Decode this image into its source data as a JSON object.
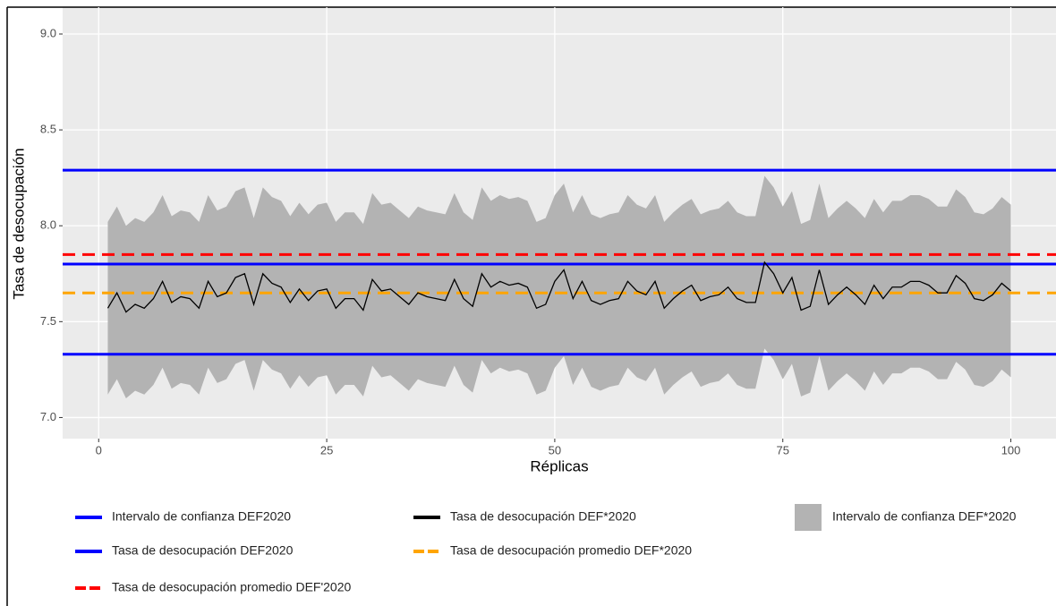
{
  "chart_data": {
    "type": "line",
    "x_label": "Réplicas",
    "y_label": "Tasa de desocupación",
    "xlim": [
      -3.95,
      104.95
    ],
    "ylim": [
      6.89,
      9.14
    ],
    "xticks": [
      0,
      25,
      50,
      75,
      100
    ],
    "yticks": [
      {
        "value": 7,
        "label": "7.0"
      },
      7.5,
      {
        "value": 8,
        "label": "8.0"
      },
      8.5,
      {
        "value": 9,
        "label": "9.0"
      }
    ],
    "grid": true,
    "x": [
      1,
      2,
      3,
      4,
      5,
      6,
      7,
      8,
      9,
      10,
      11,
      12,
      13,
      14,
      15,
      16,
      17,
      18,
      19,
      20,
      21,
      22,
      23,
      24,
      25,
      26,
      27,
      28,
      29,
      30,
      31,
      32,
      33,
      34,
      35,
      36,
      37,
      38,
      39,
      40,
      41,
      42,
      43,
      44,
      45,
      46,
      47,
      48,
      49,
      50,
      51,
      52,
      53,
      54,
      55,
      56,
      57,
      58,
      59,
      60,
      61,
      62,
      63,
      64,
      65,
      66,
      67,
      68,
      69,
      70,
      71,
      72,
      73,
      74,
      75,
      76,
      77,
      78,
      79,
      80,
      81,
      82,
      83,
      84,
      85,
      86,
      87,
      88,
      89,
      90,
      91,
      92,
      93,
      94,
      95,
      96,
      97,
      98,
      99,
      100
    ],
    "band": {
      "name": "Intervalo de confianza DEF*2020",
      "color": "#b3b3b3",
      "upper": [
        8.02,
        8.1,
        8.0,
        8.04,
        8.02,
        8.07,
        8.16,
        8.05,
        8.08,
        8.07,
        8.02,
        8.16,
        8.08,
        8.1,
        8.18,
        8.2,
        8.04,
        8.2,
        8.15,
        8.13,
        8.05,
        8.12,
        8.06,
        8.11,
        8.12,
        8.02,
        8.07,
        8.07,
        8.01,
        8.17,
        8.11,
        8.12,
        8.08,
        8.04,
        8.1,
        8.08,
        8.07,
        8.06,
        8.17,
        8.07,
        8.03,
        8.2,
        8.13,
        8.16,
        8.14,
        8.15,
        8.13,
        8.02,
        8.04,
        8.16,
        8.22,
        8.07,
        8.16,
        8.06,
        8.04,
        8.06,
        8.07,
        8.16,
        8.11,
        8.09,
        8.16,
        8.02,
        8.07,
        8.11,
        8.14,
        8.06,
        8.08,
        8.09,
        8.13,
        8.07,
        8.05,
        8.05,
        8.26,
        8.2,
        8.1,
        8.18,
        8.01,
        8.03,
        8.22,
        8.04,
        8.09,
        8.13,
        8.09,
        8.04,
        8.14,
        8.07,
        8.13,
        8.13,
        8.16,
        8.16,
        8.14,
        8.1,
        8.1,
        8.19,
        8.15,
        8.07,
        8.06,
        8.09,
        8.15,
        8.11
      ],
      "lower": [
        7.12,
        7.2,
        7.1,
        7.14,
        7.12,
        7.17,
        7.26,
        7.15,
        7.18,
        7.17,
        7.12,
        7.26,
        7.18,
        7.2,
        7.28,
        7.3,
        7.14,
        7.3,
        7.25,
        7.23,
        7.15,
        7.22,
        7.16,
        7.21,
        7.22,
        7.12,
        7.17,
        7.17,
        7.11,
        7.27,
        7.21,
        7.22,
        7.18,
        7.14,
        7.2,
        7.18,
        7.17,
        7.16,
        7.27,
        7.17,
        7.13,
        7.3,
        7.23,
        7.26,
        7.24,
        7.25,
        7.23,
        7.12,
        7.14,
        7.26,
        7.32,
        7.17,
        7.26,
        7.16,
        7.14,
        7.16,
        7.17,
        7.26,
        7.21,
        7.19,
        7.26,
        7.12,
        7.17,
        7.21,
        7.24,
        7.16,
        7.18,
        7.19,
        7.23,
        7.17,
        7.15,
        7.15,
        7.36,
        7.3,
        7.2,
        7.28,
        7.11,
        7.13,
        7.32,
        7.14,
        7.19,
        7.23,
        7.19,
        7.14,
        7.24,
        7.17,
        7.23,
        7.23,
        7.26,
        7.26,
        7.24,
        7.2,
        7.2,
        7.29,
        7.25,
        7.17,
        7.16,
        7.19,
        7.25,
        7.21
      ]
    },
    "series": [
      {
        "name": "Tasa de desocupación DEF*2020",
        "color": "#000000",
        "values": [
          7.57,
          7.65,
          7.55,
          7.59,
          7.57,
          7.62,
          7.71,
          7.6,
          7.63,
          7.62,
          7.57,
          7.71,
          7.63,
          7.65,
          7.73,
          7.75,
          7.59,
          7.75,
          7.7,
          7.68,
          7.6,
          7.67,
          7.61,
          7.66,
          7.67,
          7.57,
          7.62,
          7.62,
          7.56,
          7.72,
          7.66,
          7.67,
          7.63,
          7.59,
          7.65,
          7.63,
          7.62,
          7.61,
          7.72,
          7.62,
          7.58,
          7.75,
          7.68,
          7.71,
          7.69,
          7.7,
          7.68,
          7.57,
          7.59,
          7.71,
          7.77,
          7.62,
          7.71,
          7.61,
          7.59,
          7.61,
          7.62,
          7.71,
          7.66,
          7.64,
          7.71,
          7.57,
          7.62,
          7.66,
          7.69,
          7.61,
          7.63,
          7.64,
          7.68,
          7.62,
          7.6,
          7.6,
          7.81,
          7.75,
          7.65,
          7.73,
          7.56,
          7.58,
          7.77,
          7.59,
          7.64,
          7.68,
          7.64,
          7.59,
          7.69,
          7.62,
          7.68,
          7.68,
          7.71,
          7.71,
          7.69,
          7.65,
          7.65,
          7.74,
          7.7,
          7.62,
          7.61,
          7.64,
          7.7,
          7.66
        ]
      }
    ],
    "hlines": [
      {
        "name": "Intervalo de confianza DEF2020",
        "color": "#0000ff",
        "dashed": false,
        "values": [
          7.33,
          8.29
        ]
      },
      {
        "name": "Tasa de desocupación DEF2020",
        "color": "#0000ff",
        "dashed": false,
        "values": [
          7.8
        ]
      },
      {
        "name": "Tasa de desocupación promedio DEF'2020",
        "color": "#ff0000",
        "dashed": true,
        "values": [
          7.85
        ]
      },
      {
        "name": "Tasa de desocupación promedio DEF*2020",
        "color": "#ffa500",
        "dashed": true,
        "values": [
          7.65
        ]
      }
    ]
  }
}
